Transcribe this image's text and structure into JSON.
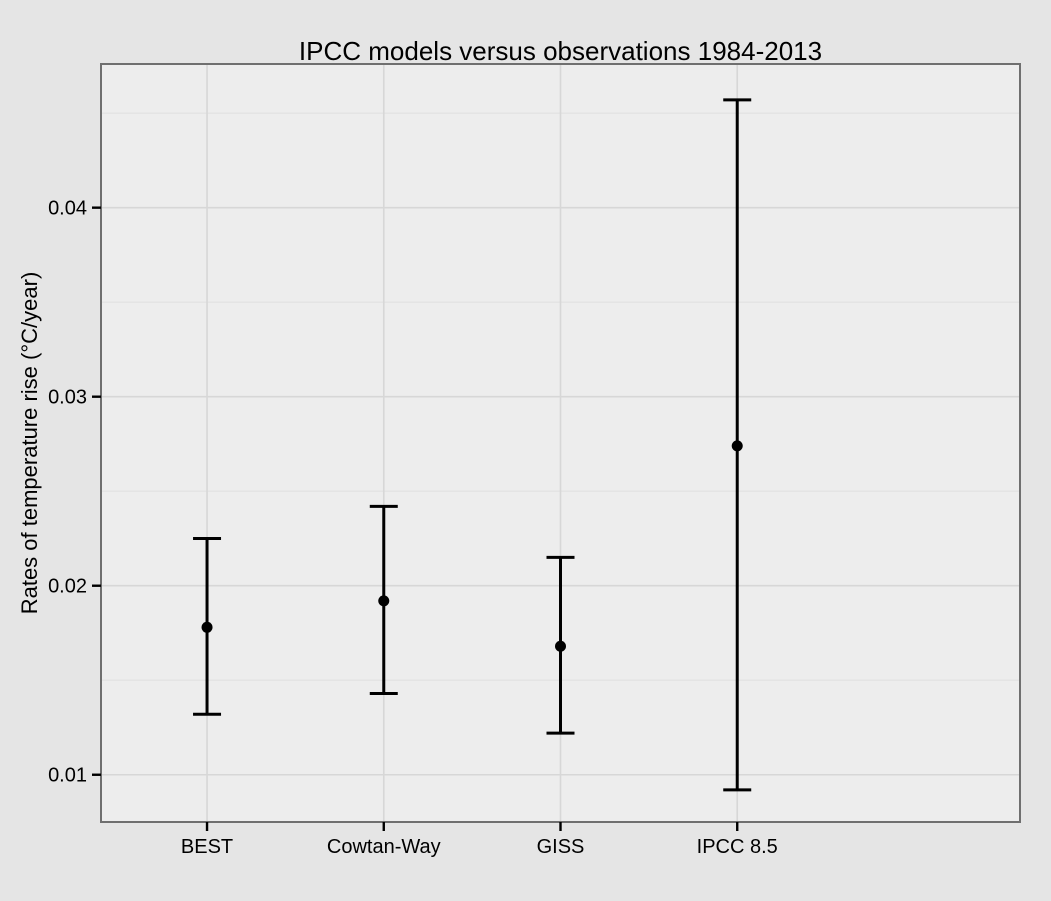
{
  "figure": {
    "title": "IPCC models versus observations 1984-2013",
    "y_axis_title": "Rates of temperature rise (°C/year)"
  },
  "chart_data": {
    "type": "scatter",
    "subtype": "point-with-error-bars",
    "title": "IPCC models versus observations 1984-2013",
    "xlabel": "",
    "ylabel": "Rates of temperature rise (°C/year)",
    "categories": [
      "BEST",
      "Cowtan-Way",
      "GISS",
      "IPCC 8.5"
    ],
    "points": [
      {
        "category": "BEST",
        "mean": 0.0178,
        "lower": 0.0132,
        "upper": 0.0225
      },
      {
        "category": "Cowtan-Way",
        "mean": 0.0192,
        "lower": 0.0143,
        "upper": 0.0242
      },
      {
        "category": "GISS",
        "mean": 0.0168,
        "lower": 0.0122,
        "upper": 0.0215
      },
      {
        "category": "IPCC 8.5",
        "mean": 0.0274,
        "lower": 0.0092,
        "upper": 0.0457
      }
    ],
    "y_ticks": [
      0.01,
      0.02,
      0.03,
      0.04
    ],
    "y_tick_labels": [
      "0.01",
      "0.02",
      "0.03",
      "0.04"
    ],
    "y_minor_ticks": [
      0.015,
      0.025,
      0.035,
      0.045
    ],
    "ylim": [
      0.0075,
      0.0476
    ],
    "grid": "major-and-minor-horizontal, major-vertical-at-categories",
    "legend": false
  },
  "colors": {
    "outer_background": "#e5e5e5",
    "panel_background": "#ededed",
    "grid_major": "#d7d7d7",
    "grid_minor": "#e2e2e2",
    "panel_border": "#6f6f6f",
    "tick_mark": "#000000",
    "data_marker": "#000000",
    "text": "#000000"
  }
}
